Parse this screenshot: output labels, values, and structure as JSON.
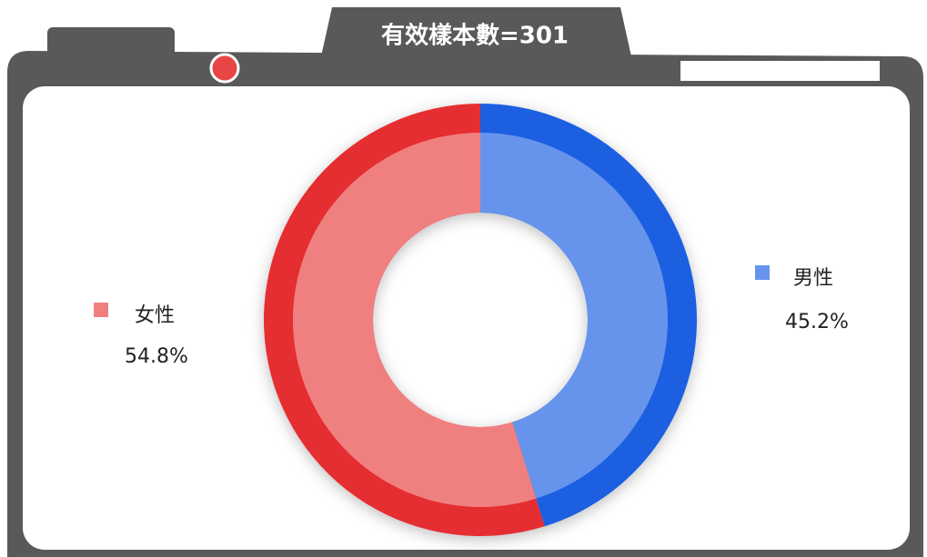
{
  "chart_data": {
    "type": "pie",
    "title": "有效樣本數=301",
    "categories": [
      "男性",
      "女性"
    ],
    "values": [
      45.2,
      54.8
    ],
    "value_labels": [
      "45.2%",
      "54.8%"
    ],
    "colors": [
      "#1a5fe0",
      "#e52e31"
    ],
    "light_colors": [
      "#6694ec",
      "#f08080"
    ]
  }
}
